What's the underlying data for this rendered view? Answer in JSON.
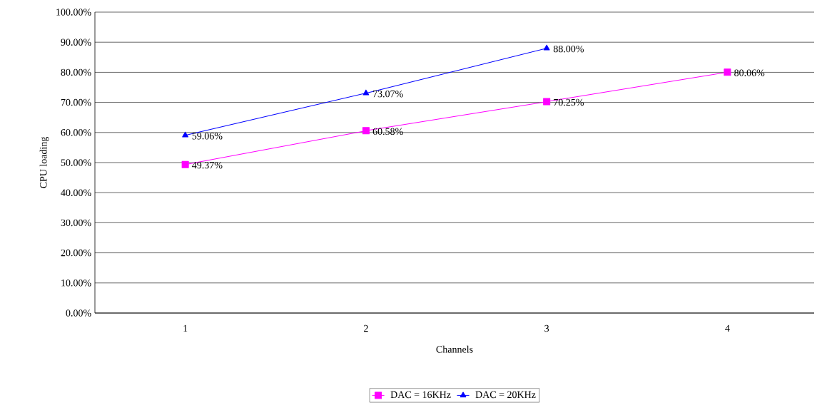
{
  "chart_data": {
    "type": "line",
    "xlabel": "Channels",
    "ylabel": "CPU loading",
    "categories": [
      "1",
      "2",
      "3",
      "4"
    ],
    "series": [
      {
        "name": "DAC = 16KHz",
        "color": "#ff00ff",
        "marker": "square",
        "values": [
          49.37,
          60.58,
          70.25,
          80.06
        ],
        "value_labels": [
          "49.37%",
          "60.58%",
          "70.25%",
          "80.06%"
        ]
      },
      {
        "name": "DAC = 20KHz",
        "color": "#0000ff",
        "marker": "triangle",
        "values": [
          59.06,
          73.07,
          88.0,
          null
        ],
        "value_labels": [
          "59.06%",
          "73.07%",
          "88.00%",
          null
        ]
      }
    ],
    "ylim": [
      0,
      100
    ],
    "yticks": [
      {
        "value": 0,
        "label": "0.00%"
      },
      {
        "value": 10,
        "label": "10.00%"
      },
      {
        "value": 20,
        "label": "20.00%"
      },
      {
        "value": 30,
        "label": "30.00%"
      },
      {
        "value": 40,
        "label": "40.00%"
      },
      {
        "value": 50,
        "label": "50.00%"
      },
      {
        "value": 60,
        "label": "60.00%"
      },
      {
        "value": 70,
        "label": "70.00%"
      },
      {
        "value": 80,
        "label": "80.00%"
      },
      {
        "value": 90,
        "label": "90.00%"
      },
      {
        "value": 100,
        "label": "100.00%"
      }
    ],
    "grid": "y",
    "legend": "bottom"
  }
}
